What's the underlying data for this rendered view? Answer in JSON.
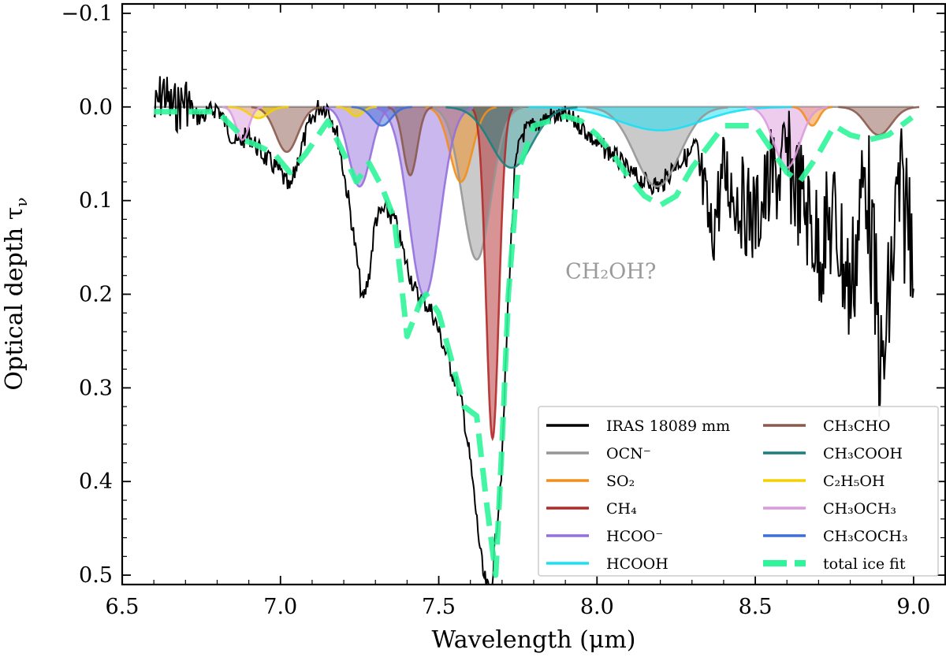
{
  "chart_data": {
    "type": "line",
    "xlabel": "Wavelength (μm)",
    "ylabel": "Optical depth τ",
    "ylabel_sub": "ν",
    "xlim": [
      6.5,
      9.1
    ],
    "ylim": [
      -0.11,
      0.51
    ],
    "y_inverted": true,
    "grid": false,
    "legend_position": "lower-right",
    "xticks": [
      6.5,
      7.0,
      7.5,
      8.0,
      8.5,
      9.0
    ],
    "xtick_labels": [
      "6.5",
      "7.0",
      "7.5",
      "8.0",
      "8.5",
      "9.0"
    ],
    "yticks": [
      -0.1,
      0.0,
      0.1,
      0.2,
      0.3,
      0.4,
      0.5
    ],
    "ytick_labels": [
      "−0.1",
      "0.0",
      "0.1",
      "0.2",
      "0.3",
      "0.4",
      "0.5"
    ],
    "annotation": {
      "text": "CH₂OH?",
      "x": 7.9,
      "y": 0.183
    },
    "observed": {
      "name": "IRAS 18089 mm",
      "color": "#000000",
      "x": [
        6.6,
        6.63,
        6.65,
        6.68,
        6.7,
        6.73,
        6.76,
        6.8,
        6.83,
        6.86,
        6.9,
        6.94,
        6.97,
        7.0,
        7.03,
        7.06,
        7.09,
        7.12,
        7.15,
        7.18,
        7.2,
        7.22,
        7.24,
        7.26,
        7.28,
        7.3,
        7.33,
        7.36,
        7.4,
        7.43,
        7.46,
        7.48,
        7.5,
        7.52,
        7.54,
        7.56,
        7.58,
        7.6,
        7.62,
        7.64,
        7.66,
        7.67,
        7.68,
        7.7,
        7.72,
        7.74,
        7.76,
        7.8,
        7.85,
        7.9,
        7.95,
        8.0,
        8.05,
        8.1,
        8.15,
        8.2,
        8.25,
        8.3,
        8.33,
        8.36,
        8.4,
        8.45,
        8.5,
        8.55,
        8.6,
        8.65,
        8.7,
        8.75,
        8.8,
        8.85,
        8.9,
        8.95,
        9.0
      ],
      "y": [
        0.01,
        -0.02,
        0.0,
        0.0,
        -0.01,
        0.01,
        0.01,
        0.0,
        0.02,
        0.04,
        0.03,
        0.05,
        0.06,
        0.07,
        0.09,
        0.05,
        0.02,
        0.0,
        0.0,
        0.03,
        0.07,
        0.11,
        0.16,
        0.21,
        0.18,
        0.12,
        0.11,
        0.12,
        0.17,
        0.2,
        0.21,
        0.22,
        0.24,
        0.26,
        0.28,
        0.3,
        0.33,
        0.38,
        0.44,
        0.5,
        0.52,
        0.5,
        0.46,
        0.38,
        0.2,
        0.07,
        0.03,
        0.02,
        0.01,
        0.01,
        0.02,
        0.04,
        0.05,
        0.07,
        0.08,
        0.085,
        0.06,
        0.05,
        0.08,
        0.14,
        0.07,
        0.1,
        0.12,
        0.08,
        0.06,
        0.1,
        0.15,
        0.12,
        0.2,
        0.06,
        0.3,
        0.1,
        0.12
      ]
    },
    "series": [
      {
        "name": "OCN⁻",
        "color": "#969696",
        "fill": true,
        "components": [
          {
            "center": 7.62,
            "depth": 0.163,
            "width": 0.045
          },
          {
            "center": 8.19,
            "depth": 0.085,
            "width": 0.07
          }
        ]
      },
      {
        "name": "SO₂",
        "color": "#f28e1c",
        "fill": true,
        "components": [
          {
            "center": 7.57,
            "depth": 0.08,
            "width": 0.035
          },
          {
            "center": 8.68,
            "depth": 0.02,
            "width": 0.02
          }
        ]
      },
      {
        "name": "CH₄",
        "color": "#b22a2a",
        "fill": true,
        "components": [
          {
            "center": 7.67,
            "depth": 0.354,
            "width": 0.02
          }
        ]
      },
      {
        "name": "HCOO⁻",
        "color": "#9370db",
        "fill": true,
        "components": [
          {
            "center": 7.455,
            "depth": 0.202,
            "width": 0.048
          },
          {
            "center": 7.25,
            "depth": 0.085,
            "width": 0.035
          }
        ]
      },
      {
        "name": "HCOOH",
        "color": "#18e0f5",
        "fill": true,
        "components": [
          {
            "center": 8.2,
            "depth": 0.025,
            "width": 0.13
          }
        ]
      },
      {
        "name": "CH₃CHO",
        "color": "#8b5a4e",
        "fill": true,
        "components": [
          {
            "center": 7.02,
            "depth": 0.048,
            "width": 0.035
          },
          {
            "center": 7.41,
            "depth": 0.073,
            "width": 0.022
          },
          {
            "center": 8.89,
            "depth": 0.03,
            "width": 0.04
          }
        ]
      },
      {
        "name": "CH₃COOH",
        "color": "#1b7f7f",
        "fill": true,
        "components": [
          {
            "center": 7.73,
            "depth": 0.065,
            "width": 0.065
          }
        ]
      },
      {
        "name": "C₂H₅OH",
        "color": "#f5d000",
        "fill": true,
        "components": [
          {
            "center": 6.93,
            "depth": 0.012,
            "width": 0.03
          },
          {
            "center": 7.24,
            "depth": 0.01,
            "width": 0.02
          }
        ]
      },
      {
        "name": "CH₃OCH₃",
        "color": "#dc9ade",
        "fill": true,
        "components": [
          {
            "center": 6.88,
            "depth": 0.035,
            "width": 0.02
          },
          {
            "center": 8.6,
            "depth": 0.065,
            "width": 0.04
          }
        ]
      },
      {
        "name": "CH₃COCH₃",
        "color": "#3d6fd6",
        "fill": true,
        "components": [
          {
            "center": 7.32,
            "depth": 0.02,
            "width": 0.03
          }
        ]
      }
    ],
    "total_fit": {
      "name": "total ice fit",
      "color": "#2ef59a",
      "x": [
        6.6,
        6.8,
        6.86,
        6.88,
        6.92,
        6.98,
        7.03,
        7.08,
        7.15,
        7.2,
        7.24,
        7.28,
        7.32,
        7.36,
        7.4,
        7.44,
        7.46,
        7.5,
        7.54,
        7.58,
        7.62,
        7.65,
        7.68,
        7.7,
        7.72,
        7.75,
        7.8,
        7.85,
        7.9,
        7.95,
        8.0,
        8.05,
        8.1,
        8.15,
        8.2,
        8.25,
        8.3,
        8.4,
        8.5,
        8.56,
        8.6,
        8.64,
        8.7,
        8.75,
        8.8,
        8.86,
        8.92,
        9.0
      ],
      "y": [
        0.005,
        0.005,
        0.025,
        0.035,
        0.04,
        0.05,
        0.07,
        0.05,
        0.015,
        0.05,
        0.08,
        0.06,
        0.085,
        0.12,
        0.245,
        0.21,
        0.2,
        0.22,
        0.27,
        0.32,
        0.33,
        0.42,
        0.5,
        0.36,
        0.2,
        0.07,
        0.02,
        0.015,
        0.01,
        0.015,
        0.03,
        0.05,
        0.075,
        0.095,
        0.105,
        0.095,
        0.065,
        0.02,
        0.02,
        0.05,
        0.07,
        0.08,
        0.05,
        0.02,
        0.03,
        0.035,
        0.03,
        0.01
      ]
    }
  }
}
